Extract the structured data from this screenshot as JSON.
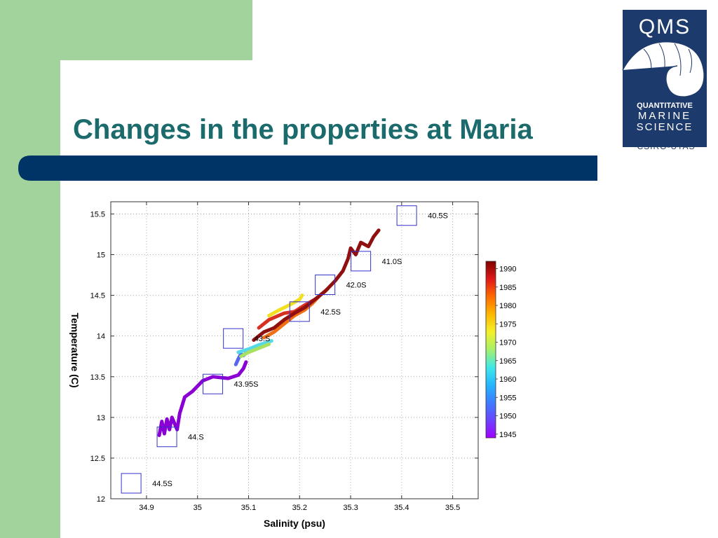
{
  "slide": {
    "title": "Changes in the properties at Maria",
    "colors": {
      "green": "#a2d39c",
      "navy": "#003366",
      "title": "#1b6b6d"
    }
  },
  "logo": {
    "top": "QMS",
    "line1": "QUANTITATIVE",
    "line2": "MARINE",
    "line3": "SCIENCE",
    "bottom": "CSIRO-UTAS"
  },
  "chart_data": {
    "type": "scatter",
    "xlabel": "Salinity (psu)",
    "ylabel": "Temperature (C)",
    "xlim": [
      34.83,
      35.55
    ],
    "ylim": [
      12,
      15.65
    ],
    "xticks": [
      "34.9",
      "35",
      "35.1",
      "35.2",
      "35.3",
      "35.4",
      "35.5"
    ],
    "yticks": [
      "12",
      "12.5",
      "13",
      "13.5",
      "14",
      "14.5",
      "15",
      "15.5"
    ],
    "grid": true,
    "stations": [
      {
        "label": "40.5S",
        "x": 35.41,
        "y": 15.48
      },
      {
        "label": "41.0S",
        "x": 35.32,
        "y": 14.92
      },
      {
        "label": "42.0S",
        "x": 35.25,
        "y": 14.63
      },
      {
        "label": "42.5S",
        "x": 35.2,
        "y": 14.3
      },
      {
        "label": "43.S",
        "x": 35.07,
        "y": 13.97
      },
      {
        "label": "43.95S",
        "x": 35.03,
        "y": 13.41
      },
      {
        "label": "44.S",
        "x": 34.94,
        "y": 12.76
      },
      {
        "label": "44.5S",
        "x": 34.87,
        "y": 12.19
      }
    ],
    "profiles": [
      {
        "year": 1946,
        "color": "#8a00d4",
        "points": [
          [
            34.925,
            12.78
          ],
          [
            34.93,
            12.95
          ],
          [
            34.935,
            12.8
          ],
          [
            34.94,
            12.98
          ],
          [
            34.945,
            12.85
          ],
          [
            34.95,
            13.0
          ],
          [
            34.96,
            12.85
          ],
          [
            34.965,
            13.05
          ],
          [
            34.975,
            13.25
          ],
          [
            34.99,
            13.32
          ],
          [
            35.01,
            13.45
          ],
          [
            35.03,
            13.5
          ],
          [
            35.06,
            13.48
          ],
          [
            35.08,
            13.52
          ],
          [
            35.09,
            13.6
          ],
          [
            35.095,
            13.68
          ]
        ]
      },
      {
        "year": 1955,
        "color": "#5566f0",
        "points": [
          [
            35.075,
            13.65
          ],
          [
            35.08,
            13.72
          ],
          [
            35.085,
            13.78
          ],
          [
            35.09,
            13.76
          ],
          [
            35.1,
            13.82
          ],
          [
            35.11,
            13.86
          ]
        ]
      },
      {
        "year": 1962,
        "color": "#55d8e8",
        "points": [
          [
            35.08,
            13.8
          ],
          [
            35.1,
            13.84
          ],
          [
            35.12,
            13.89
          ],
          [
            35.135,
            13.92
          ],
          [
            35.145,
            13.94
          ]
        ]
      },
      {
        "year": 1968,
        "color": "#a8e060",
        "points": [
          [
            35.085,
            13.75
          ],
          [
            35.1,
            13.8
          ],
          [
            35.12,
            13.85
          ],
          [
            35.14,
            13.9
          ]
        ]
      },
      {
        "year": 1972,
        "color": "#f0e020",
        "points": [
          [
            35.14,
            14.25
          ],
          [
            35.16,
            14.32
          ],
          [
            35.18,
            14.38
          ],
          [
            35.2,
            14.45
          ],
          [
            35.205,
            14.5
          ]
        ]
      },
      {
        "year": 1982,
        "color": "#f07018",
        "points": [
          [
            35.13,
            13.98
          ],
          [
            35.15,
            14.05
          ],
          [
            35.17,
            14.15
          ],
          [
            35.19,
            14.25
          ],
          [
            35.21,
            14.32
          ],
          [
            35.225,
            14.4
          ],
          [
            35.24,
            14.5
          ],
          [
            35.255,
            14.58
          ]
        ]
      },
      {
        "year": 1986,
        "color": "#d83020",
        "points": [
          [
            35.12,
            14.1
          ],
          [
            35.14,
            14.2
          ],
          [
            35.17,
            14.28
          ],
          [
            35.19,
            14.3
          ],
          [
            35.21,
            14.38
          ],
          [
            35.23,
            14.45
          ]
        ]
      },
      {
        "year": 1990,
        "color": "#901010",
        "points": [
          [
            35.11,
            13.95
          ],
          [
            35.13,
            14.05
          ],
          [
            35.15,
            14.1
          ],
          [
            35.17,
            14.2
          ],
          [
            35.19,
            14.28
          ],
          [
            35.21,
            14.35
          ],
          [
            35.23,
            14.45
          ],
          [
            35.25,
            14.55
          ],
          [
            35.27,
            14.68
          ],
          [
            35.285,
            14.8
          ],
          [
            35.295,
            14.95
          ],
          [
            35.3,
            15.08
          ],
          [
            35.31,
            15.0
          ],
          [
            35.32,
            15.15
          ],
          [
            35.335,
            15.1
          ],
          [
            35.345,
            15.22
          ],
          [
            35.355,
            15.3
          ]
        ]
      }
    ],
    "colorbar": {
      "ticks": [
        "1990",
        "1985",
        "1980",
        "1975",
        "1970",
        "1965",
        "1960",
        "1955",
        "1950",
        "1945"
      ],
      "min": 1944,
      "max": 1992,
      "colors": [
        "#a000ff",
        "#6a44ff",
        "#3d7cff",
        "#24b6ff",
        "#40e8e8",
        "#a6f06a",
        "#f4f028",
        "#ffb800",
        "#ff6a00",
        "#e01818",
        "#800000"
      ]
    }
  }
}
